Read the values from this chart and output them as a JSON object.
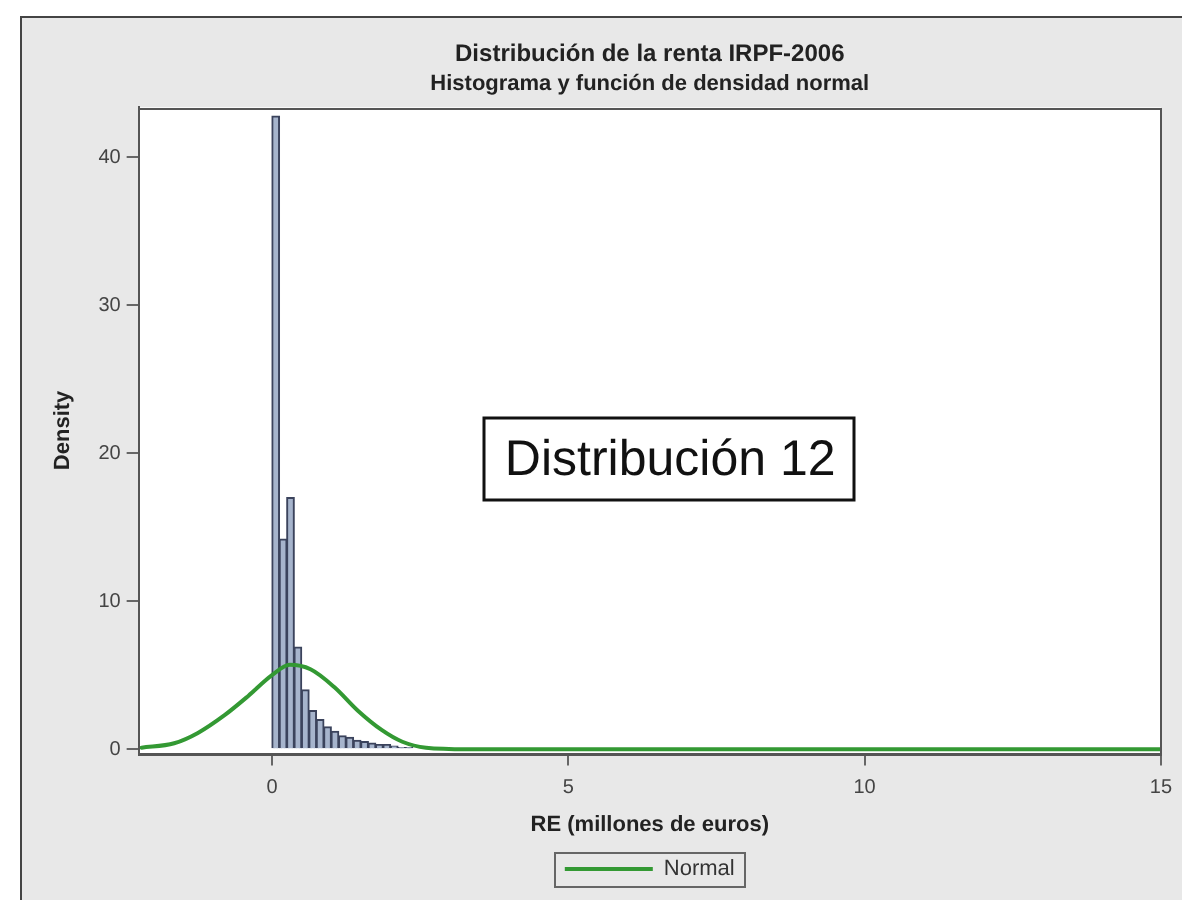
{
  "chart_data": {
    "type": "histogram",
    "title": "Distribución de la renta IRPF-2006",
    "subtitle": "Histograma y función de densidad normal",
    "xlabel": "RE (millones de euros)",
    "ylabel": "Density",
    "annotations": [
      "Distribución 12"
    ],
    "xlim": [
      -2.25,
      15
    ],
    "xticks": [
      0,
      5,
      10,
      15
    ],
    "ylim": [
      -0.3,
      43.4
    ],
    "yticks": [
      0,
      10,
      20,
      30,
      40
    ],
    "grid": false,
    "legend": "bottom",
    "series": [
      {
        "color": "#a6b4cc",
        "bins": [
          0,
          0.125,
          0.25,
          0.375,
          0.5,
          0.625,
          0.75,
          0.875,
          1,
          1.125,
          1.25,
          1.375,
          1.5,
          1.625,
          1.75,
          1.875,
          2,
          2.125,
          2.25,
          2.375
        ],
        "values": [
          42.8,
          14.2,
          17,
          6.9,
          4,
          2.6,
          2,
          1.5,
          1.2,
          0.9,
          0.8,
          0.6,
          0.5,
          0.4,
          0.3,
          0.3,
          0.2,
          0.1,
          0.1
        ]
      },
      {
        "type": "line",
        "name": "Normal",
        "color": "#339933",
        "x": [
          -2.2,
          -1.65,
          -1.25,
          -0.8,
          -0.4,
          0,
          0.3,
          0.65,
          1.05,
          1.45,
          1.85,
          2.2,
          2.6,
          3.3,
          15
        ],
        "values": [
          0.1,
          0.4,
          1.1,
          2.3,
          3.6,
          5.0,
          5.7,
          5.4,
          4.2,
          2.6,
          1.3,
          0.5,
          0.1,
          0,
          0
        ]
      }
    ]
  }
}
